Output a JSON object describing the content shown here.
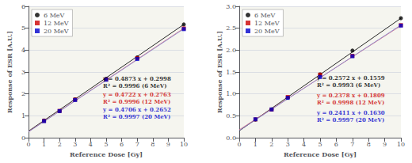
{
  "chart_data": [
    {
      "type": "scatter",
      "x_label": "Reference Dose [Gy]",
      "y_label": "Response of ESR [A.U.]",
      "xlim": [
        0,
        10
      ],
      "ylim": [
        0,
        6
      ],
      "xticks": [
        0,
        1,
        2,
        3,
        4,
        5,
        6,
        7,
        8,
        9,
        10
      ],
      "yticks": [
        0,
        1,
        2,
        3,
        4,
        5,
        6
      ],
      "grid": "y",
      "legend": "upper left",
      "series": [
        {
          "type": "line",
          "color": "#000000",
          "x": [
            0,
            10
          ],
          "values": [
            0.2998,
            5.1728
          ]
        },
        {
          "type": "line",
          "color": "#cc6688",
          "x": [
            0,
            10
          ],
          "values": [
            0.2763,
            4.9983
          ]
        },
        {
          "type": "line",
          "color": "#8888cc",
          "x": [
            0,
            10
          ],
          "values": [
            0.2652,
            4.9712
          ]
        },
        {
          "type": "scatter",
          "name": "6 MeV",
          "color": "#000000",
          "marker": "circle",
          "x": [
            1,
            2,
            3,
            5,
            7,
            10
          ],
          "values": [
            0.787,
            1.217,
            1.752,
            2.694,
            3.671,
            5.173
          ]
        },
        {
          "type": "scatter",
          "name": "12 MeV",
          "color": "#cc0000",
          "marker": "square",
          "x": [
            1,
            2,
            3,
            5,
            7,
            10
          ],
          "values": [
            0.77,
            1.224,
            1.738,
            2.66,
            3.63,
            4.99
          ]
        },
        {
          "type": "scatter",
          "name": "20 MeV",
          "color": "#0000cc",
          "marker": "square",
          "x": [
            1,
            2,
            3,
            5,
            7,
            10
          ],
          "values": [
            0.756,
            1.215,
            1.72,
            2.648,
            3.594,
            4.958
          ]
        }
      ],
      "annotations": [
        {
          "text": "y = 0.4873 x + 0.2998\nR² = 0.9996 (6 MeV)",
          "x": 4.8,
          "y": 2.85,
          "color": "#000000"
        },
        {
          "text": "y = 0.4722 x + 0.2763\nR² = 0.9996 (12 MeV)",
          "x": 4.8,
          "y": 2.15,
          "color": "#cc0000"
        },
        {
          "text": "y = 0.4706 x + 0.2652\nR² = 0.9997 (20 MeV)",
          "x": 4.8,
          "y": 1.45,
          "color": "#0000cc"
        }
      ]
    },
    {
      "type": "scatter",
      "x_label": "Reference Dose [Gy]",
      "y_label": "Response of ESR [A.U.]",
      "xlim": [
        0,
        10
      ],
      "ylim": [
        0,
        3
      ],
      "xticks": [
        0,
        1,
        2,
        3,
        4,
        5,
        6,
        7,
        8,
        9,
        10
      ],
      "yticks": [
        {
          "value": 0,
          "label": "0.0"
        },
        0.5,
        {
          "value": 1,
          "label": "1.0"
        },
        1.5,
        {
          "value": 2,
          "label": "2.0"
        },
        2.5,
        {
          "value": 3,
          "label": "3.0"
        }
      ],
      "grid": "y",
      "legend": "upper left",
      "series": [
        {
          "type": "line",
          "color": "#000000",
          "x": [
            0,
            10
          ],
          "values": [
            0.1559,
            2.7279
          ]
        },
        {
          "type": "line",
          "color": "#cc6688",
          "x": [
            0,
            10
          ],
          "values": [
            0.1809,
            2.5589
          ]
        },
        {
          "type": "line",
          "color": "#8888cc",
          "x": [
            0,
            10
          ],
          "values": [
            0.163,
            2.574
          ]
        },
        {
          "type": "scatter",
          "name": "6 MeV",
          "color": "#000000",
          "marker": "circle",
          "x": [
            1,
            2,
            3,
            5,
            7,
            10
          ],
          "values": [
            0.413,
            0.647,
            0.913,
            1.446,
            1.99,
            2.729
          ]
        },
        {
          "type": "scatter",
          "name": "12 MeV",
          "color": "#cc0000",
          "marker": "square",
          "x": [
            1,
            2,
            3,
            5,
            7,
            10
          ],
          "values": [
            0.418,
            0.642,
            0.93,
            1.44,
            1.87,
            2.57
          ]
        },
        {
          "type": "scatter",
          "name": "20 MeV",
          "color": "#0000cc",
          "marker": "square",
          "x": [
            1,
            2,
            3,
            5,
            7,
            10
          ],
          "values": [
            0.42,
            0.645,
            0.91,
            1.385,
            1.86,
            2.56
          ]
        }
      ],
      "annotations": [
        {
          "text": "y = 0.2572 x + 0.1559\nR² = 0.9993 (6 MeV)",
          "x": 4.8,
          "y": 1.45,
          "color": "#000000"
        },
        {
          "text": "y = 0.2378 x + 0.1809\nR² = 0.9998 (12 MeV)",
          "x": 4.8,
          "y": 1.05,
          "color": "#cc0000"
        },
        {
          "text": "y = 0.2411 x + 0.1630\nR² = 0.9997 (20 MeV)",
          "x": 4.8,
          "y": 0.65,
          "color": "#0000cc"
        }
      ]
    }
  ]
}
